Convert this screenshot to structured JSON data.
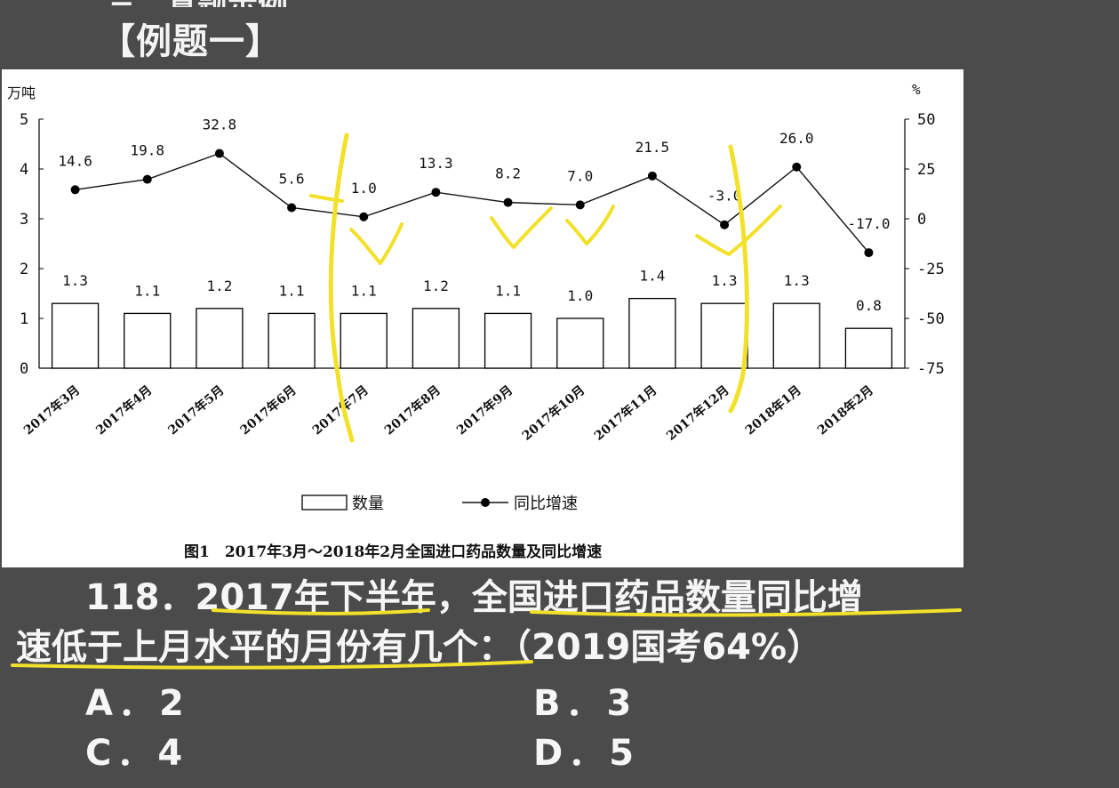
{
  "header": {
    "cut_title": "三、真题示例",
    "example_label": "【例题一】"
  },
  "chart_data": {
    "type": "bar",
    "categories": [
      "2017年3月",
      "2017年4月",
      "2017年5月",
      "2017年6月",
      "2017年7月",
      "2017年8月",
      "2017年9月",
      "2017年10月",
      "2017年11月",
      "2017年12月",
      "2018年1月",
      "2018年2月"
    ],
    "series": [
      {
        "name": "数量",
        "type": "bar",
        "axis": "left",
        "values": [
          1.3,
          1.1,
          1.2,
          1.1,
          1.1,
          1.2,
          1.1,
          1.0,
          1.4,
          1.3,
          1.3,
          0.8
        ]
      },
      {
        "name": "同比增速",
        "type": "line",
        "axis": "right",
        "values": [
          14.6,
          19.8,
          32.8,
          5.6,
          1.0,
          13.3,
          8.2,
          7.0,
          21.5,
          -3.0,
          26.0,
          -17.0
        ]
      }
    ],
    "bar_labels": [
      "1.3",
      "1.1",
      "1.2",
      "1.1",
      "1.1",
      "1.2",
      "1.1",
      "1.0",
      "1.4",
      "1.3",
      "1.3",
      "0.8"
    ],
    "line_labels": [
      "14.6",
      "19.8",
      "32.8",
      "5.6",
      "1.0",
      "13.3",
      "8.2",
      "7.0",
      "21.5",
      "-3.0",
      "26.0",
      "-17.0"
    ],
    "ylabel_left": "万吨",
    "ylabel_right": "%",
    "ylim_left": [
      0,
      5
    ],
    "ylim_right": [
      -75,
      50
    ],
    "left_ticks": [
      "0",
      "1",
      "2",
      "3",
      "4",
      "5"
    ],
    "right_ticks": [
      "-75",
      "-50",
      "-25",
      "0",
      "25",
      "50"
    ],
    "legend": [
      "数量",
      "同比增速"
    ],
    "legend_position": "bottom",
    "title": "图1　2017年3月～2018年2月全国进口药品数量及同比增速"
  },
  "question": {
    "line1": "118．2017年下半年，全国进口药品数量同比增",
    "line2": "速低于上月水平的月份有几个：（2019国考64%）"
  },
  "options": [
    {
      "text": "A．2"
    },
    {
      "text": "B．3"
    },
    {
      "text": "C．4"
    },
    {
      "text": "D．5"
    }
  ],
  "colors": {
    "annotation": "#f2e12a",
    "background": "#4b4b4b"
  }
}
